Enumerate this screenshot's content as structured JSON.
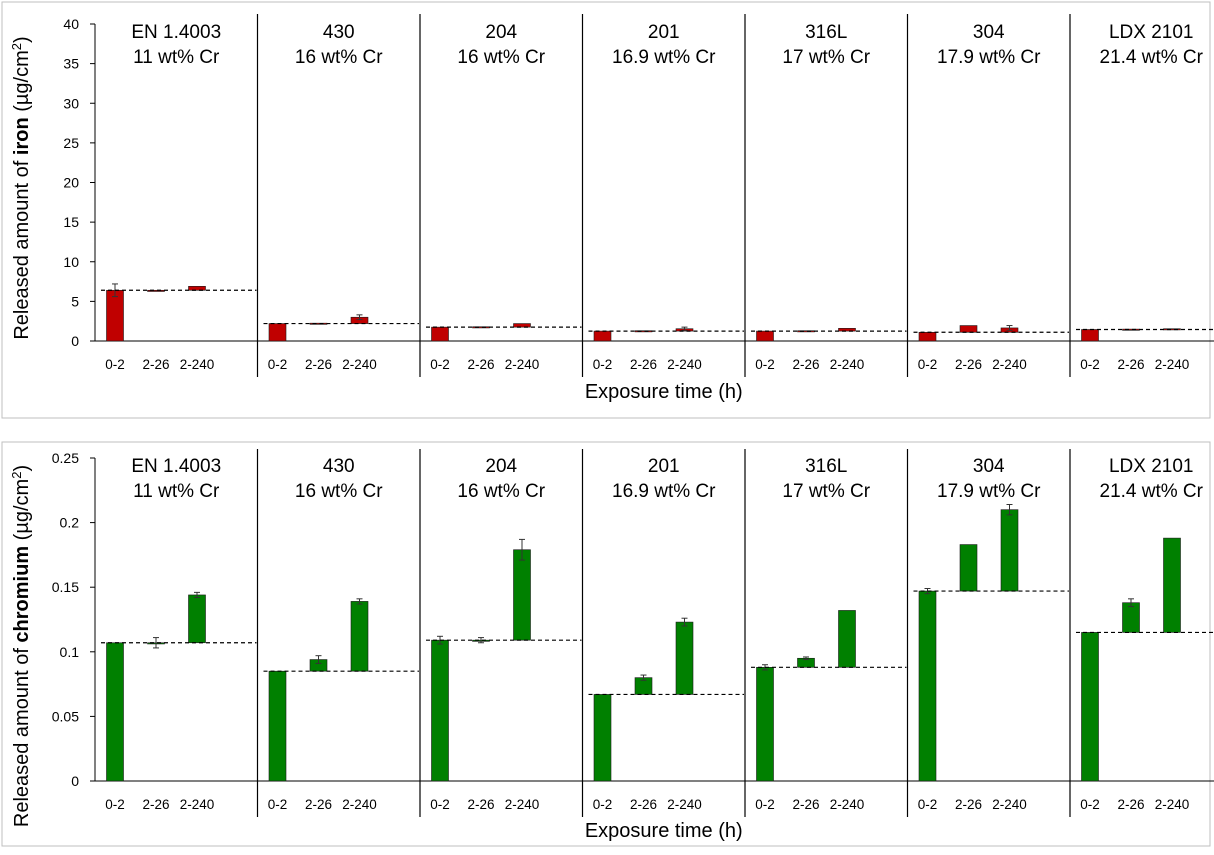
{
  "chart_data": [
    {
      "type": "bar",
      "ylabel_parts": [
        "Released amount of ",
        "iron",
        " (µg/cm",
        "2",
        ")"
      ],
      "xlabel": "Exposure time (h)",
      "ylim": [
        0,
        40
      ],
      "yticks": [
        0,
        5,
        10,
        15,
        20,
        25,
        30,
        35,
        40
      ],
      "categories": [
        "0-2",
        "2-26",
        "2-240"
      ],
      "bar_color": "#c00000",
      "grid": false,
      "panels": [
        {
          "grade": "EN 1.4003",
          "cr": "11 wt% Cr",
          "baseline": 6.4,
          "bars": [
            {
              "from": 0,
              "to": 6.4,
              "err": 0.8
            },
            {
              "from": 6.4,
              "to": 6.4,
              "err": 0.0
            },
            {
              "from": 6.4,
              "to": 6.9,
              "err": 0.0
            }
          ]
        },
        {
          "grade": "430",
          "cr": "16 wt% Cr",
          "baseline": 2.2,
          "bars": [
            {
              "from": 0,
              "to": 2.2,
              "err": 0.0
            },
            {
              "from": 2.2,
              "to": 2.25,
              "err": 0.0
            },
            {
              "from": 2.2,
              "to": 3.0,
              "err": 0.3
            }
          ]
        },
        {
          "grade": "204",
          "cr": "16 wt% Cr",
          "baseline": 1.75,
          "bars": [
            {
              "from": 0,
              "to": 1.75,
              "err": 0.0
            },
            {
              "from": 1.75,
              "to": 1.8,
              "err": 0.0
            },
            {
              "from": 1.75,
              "to": 2.2,
              "err": 0.0
            }
          ]
        },
        {
          "grade": "201",
          "cr": "16.9 wt% Cr",
          "baseline": 1.25,
          "bars": [
            {
              "from": 0,
              "to": 1.25,
              "err": 0.0
            },
            {
              "from": 1.25,
              "to": 1.3,
              "err": 0.0
            },
            {
              "from": 1.25,
              "to": 1.55,
              "err": 0.2
            }
          ]
        },
        {
          "grade": "316L",
          "cr": "17 wt% Cr",
          "baseline": 1.25,
          "bars": [
            {
              "from": 0,
              "to": 1.25,
              "err": 0.0
            },
            {
              "from": 1.25,
              "to": 1.3,
              "err": 0.0
            },
            {
              "from": 1.25,
              "to": 1.6,
              "err": 0.0
            }
          ]
        },
        {
          "grade": "304",
          "cr": "17.9 wt% Cr",
          "baseline": 1.1,
          "bars": [
            {
              "from": 0,
              "to": 1.1,
              "err": 0.0
            },
            {
              "from": 1.1,
              "to": 1.95,
              "err": 0.0
            },
            {
              "from": 1.1,
              "to": 1.65,
              "err": 0.3
            }
          ]
        },
        {
          "grade": "LDX 2101",
          "cr": "21.4 wt% Cr",
          "baseline": 1.45,
          "bars": [
            {
              "from": 0,
              "to": 1.45,
              "err": 0.0
            },
            {
              "from": 1.45,
              "to": 1.5,
              "err": 0.0
            },
            {
              "from": 1.45,
              "to": 1.55,
              "err": 0.0
            }
          ]
        }
      ]
    },
    {
      "type": "bar",
      "ylabel_parts": [
        "Released amount of ",
        "chromium",
        " (µg/cm",
        "2",
        ")"
      ],
      "xlabel": "Exposure time (h)",
      "ylim": [
        0,
        0.25
      ],
      "yticks": [
        0,
        0.05,
        0.1,
        0.15,
        0.2,
        0.25
      ],
      "ytick_labels": [
        "0",
        "0.05",
        "0.1",
        "0.15",
        "0.2",
        "0.25"
      ],
      "categories": [
        "0-2",
        "2-26",
        "2-240"
      ],
      "bar_color": "#008000",
      "grid": false,
      "panels": [
        {
          "grade": "EN 1.4003",
          "cr": "11 wt% Cr",
          "baseline": 0.107,
          "bars": [
            {
              "from": 0,
              "to": 0.107,
              "err": 0.0
            },
            {
              "from": 0.107,
              "to": 0.107,
              "err": 0.004
            },
            {
              "from": 0.107,
              "to": 0.144,
              "err": 0.002
            }
          ]
        },
        {
          "grade": "430",
          "cr": "16 wt% Cr",
          "baseline": 0.085,
          "bars": [
            {
              "from": 0,
              "to": 0.085,
              "err": 0.0
            },
            {
              "from": 0.085,
              "to": 0.094,
              "err": 0.003
            },
            {
              "from": 0.085,
              "to": 0.139,
              "err": 0.002
            }
          ]
        },
        {
          "grade": "204",
          "cr": "16 wt% Cr",
          "baseline": 0.109,
          "bars": [
            {
              "from": 0,
              "to": 0.109,
              "err": 0.003
            },
            {
              "from": 0.109,
              "to": 0.109,
              "err": 0.002
            },
            {
              "from": 0.109,
              "to": 0.179,
              "err": 0.008
            }
          ]
        },
        {
          "grade": "201",
          "cr": "16.9 wt% Cr",
          "baseline": 0.067,
          "bars": [
            {
              "from": 0,
              "to": 0.067,
              "err": 0.0
            },
            {
              "from": 0.067,
              "to": 0.08,
              "err": 0.002
            },
            {
              "from": 0.067,
              "to": 0.123,
              "err": 0.003
            }
          ]
        },
        {
          "grade": "316L",
          "cr": "17 wt% Cr",
          "baseline": 0.088,
          "bars": [
            {
              "from": 0,
              "to": 0.088,
              "err": 0.002
            },
            {
              "from": 0.088,
              "to": 0.095,
              "err": 0.001
            },
            {
              "from": 0.088,
              "to": 0.132,
              "err": 0.0
            }
          ]
        },
        {
          "grade": "304",
          "cr": "17.9 wt% Cr",
          "baseline": 0.147,
          "bars": [
            {
              "from": 0,
              "to": 0.147,
              "err": 0.002
            },
            {
              "from": 0.147,
              "to": 0.183,
              "err": 0.0
            },
            {
              "from": 0.147,
              "to": 0.21,
              "err": 0.004
            }
          ]
        },
        {
          "grade": "LDX 2101",
          "cr": "21.4 wt% Cr",
          "baseline": 0.115,
          "bars": [
            {
              "from": 0,
              "to": 0.115,
              "err": 0.0
            },
            {
              "from": 0.115,
              "to": 0.138,
              "err": 0.003
            },
            {
              "from": 0.115,
              "to": 0.188,
              "err": 0.0
            }
          ]
        }
      ]
    }
  ]
}
